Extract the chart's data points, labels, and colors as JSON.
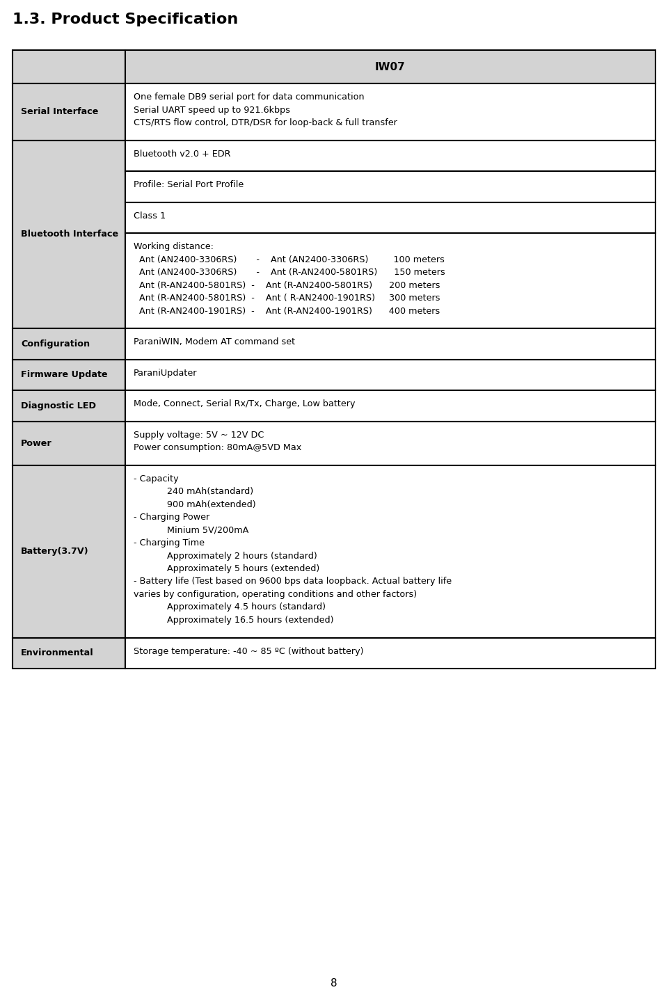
{
  "title": "1.3. Product Specification",
  "page_number": "8",
  "header_col1": "",
  "header_col2": "IW07",
  "bg_color": "#d3d3d3",
  "white": "#ffffff",
  "black": "#000000",
  "rows": [
    {
      "label": "Serial Interface",
      "content": "One female DB9 serial port for data communication\nSerial UART speed up to 921.6kbps\nCTS/RTS flow control, DTR/DSR for loop-back & full transfer",
      "sub_rows": null
    },
    {
      "label": "Bluetooth Interface",
      "content": null,
      "sub_rows": [
        "Bluetooth v2.0 + EDR",
        "Profile: Serial Port Profile",
        "Class 1",
        "Working distance:\n  Ant (AN2400-3306RS)       -    Ant (AN2400-3306RS)         100 meters\n  Ant (AN2400-3306RS)       -    Ant (R-AN2400-5801RS)      150 meters\n  Ant (R-AN2400-5801RS)  -    Ant (R-AN2400-5801RS)      200 meters\n  Ant (R-AN2400-5801RS)  -    Ant ( R-AN2400-1901RS)     300 meters\n  Ant (R-AN2400-1901RS)  -    Ant (R-AN2400-1901RS)      400 meters"
      ]
    },
    {
      "label": "Configuration",
      "content": "ParaniWIN, Modem AT command set",
      "sub_rows": null
    },
    {
      "label": "Firmware Update",
      "content": "ParaniUpdater",
      "sub_rows": null
    },
    {
      "label": "Diagnostic LED",
      "content": "Mode, Connect, Serial Rx/Tx, Charge, Low battery",
      "sub_rows": null
    },
    {
      "label": "Power",
      "content": "Supply voltage: 5V ~ 12V DC\nPower consumption: 80mA@5VD Max",
      "sub_rows": null
    },
    {
      "label": "Battery(3.7V)",
      "content": "- Capacity\n            240 mAh(standard)\n            900 mAh(extended)\n- Charging Power\n            Minium 5V/200mA\n- Charging Time\n            Approximately 2 hours (standard)\n            Approximately 5 hours (extended)\n- Battery life (Test based on 9600 bps data loopback. Actual battery life\nvaries by configuration, operating conditions and other factors)\n            Approximately 4.5 hours (standard)\n            Approximately 16.5 hours (extended)",
      "sub_rows": null
    },
    {
      "label": "Environmental",
      "content": "Storage temperature: -40 ~ 85 ºC (without battery)",
      "sub_rows": null
    }
  ]
}
